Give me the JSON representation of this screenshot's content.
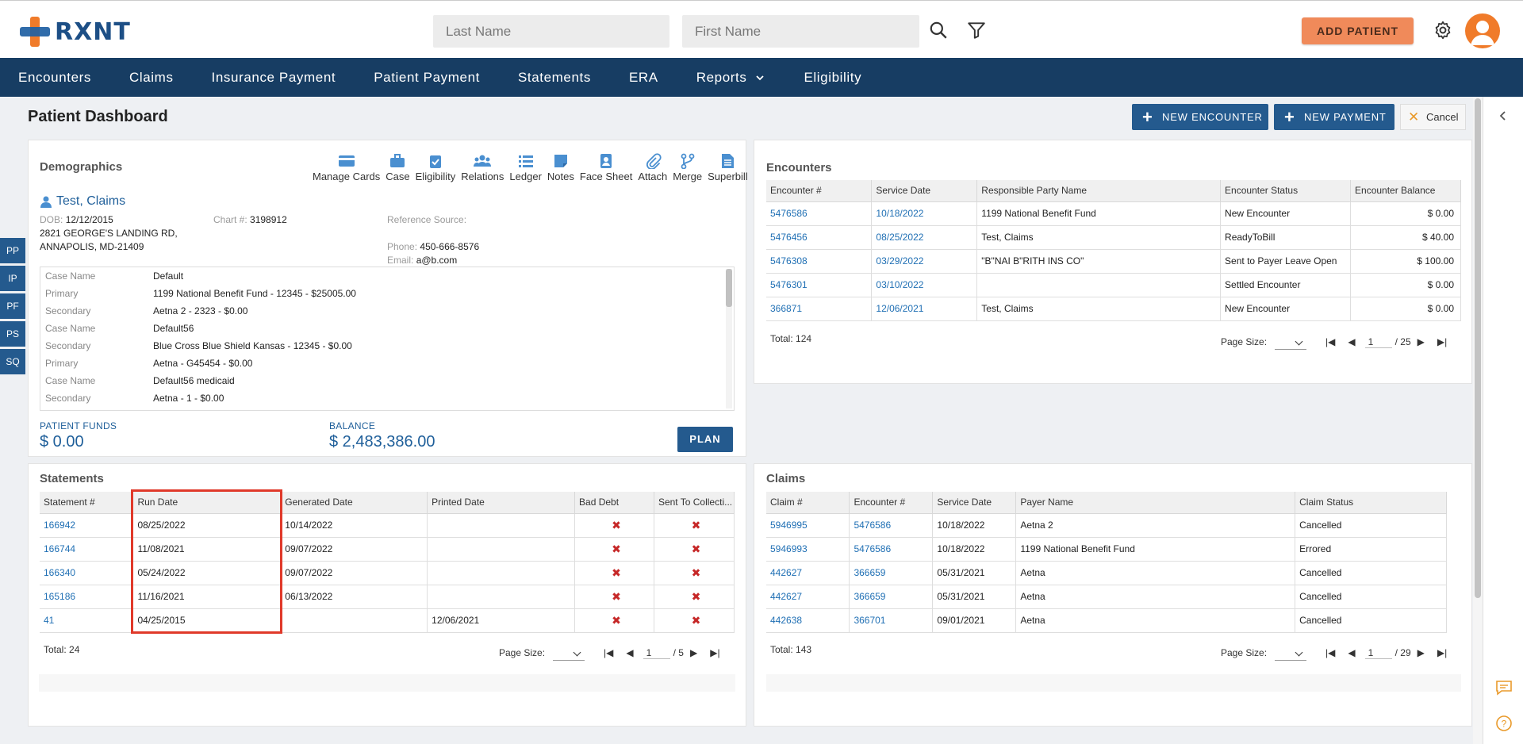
{
  "header": {
    "logo_text": "RXNT",
    "last_name_placeholder": "Last Name",
    "first_name_placeholder": "First Name",
    "add_patient_label": "ADD PATIENT"
  },
  "nav": [
    "Encounters",
    "Claims",
    "Insurance Payment",
    "Patient Payment",
    "Statements",
    "ERA",
    "Reports",
    "Eligibility"
  ],
  "page": {
    "title": "Patient Dashboard",
    "new_encounter_label": "NEW ENCOUNTER",
    "new_payment_label": "NEW PAYMENT",
    "cancel_label": "Cancel"
  },
  "left_tabs": [
    "PP",
    "IP",
    "PF",
    "PS",
    "SQ"
  ],
  "demographics": {
    "title": "Demographics",
    "tools": [
      "Manage Cards",
      "Case",
      "Eligibility",
      "Relations",
      "Ledger",
      "Notes",
      "Face Sheet",
      "Attach",
      "Merge",
      "Superbill"
    ],
    "patient_name": "Test, Claims",
    "dob_label": "DOB:",
    "dob": "12/12/2015",
    "chart_label": "Chart #:",
    "chart": "3198912",
    "address1": "2821 GEORGE'S LANDING RD,",
    "address2": "ANNAPOLIS, MD-21409",
    "reference_label": "Reference Source:",
    "phone_label": "Phone:",
    "phone": "450-666-8576",
    "email_label": "Email:",
    "email": "a@b.com",
    "cases": [
      {
        "k": "Case Name",
        "v": "Default"
      },
      {
        "k": "Primary",
        "v": "1199 National Benefit Fund - 12345 - $25005.00"
      },
      {
        "k": "Secondary",
        "v": "Aetna 2 - 2323 - $0.00"
      },
      {
        "k": "Case Name",
        "v": "Default56"
      },
      {
        "k": "Secondary",
        "v": "Blue Cross Blue Shield Kansas - 12345 - $0.00"
      },
      {
        "k": "Primary",
        "v": "Aetna - G45454 - $0.00"
      },
      {
        "k": "Case Name",
        "v": "Default56 medicaid"
      },
      {
        "k": "Secondary",
        "v": "Aetna - 1 - $0.00"
      }
    ],
    "patient_funds_label": "PATIENT FUNDS",
    "patient_funds": "$ 0.00",
    "balance_label": "BALANCE",
    "balance": "$ 2,483,386.00",
    "plan_label": "PLAN"
  },
  "encounters": {
    "title": "Encounters",
    "columns": [
      "Encounter #",
      "Service Date",
      "Responsible Party Name",
      "Encounter Status",
      "Encounter Balance"
    ],
    "rows": [
      [
        "5476586",
        "10/18/2022",
        "1199 National Benefit Fund",
        "New Encounter",
        "$ 0.00"
      ],
      [
        "5476456",
        "08/25/2022",
        "Test, Claims",
        "ReadyToBill",
        "$ 40.00"
      ],
      [
        "5476308",
        "03/29/2022",
        "\"B\"NAI B\"RITH INS CO\"",
        "Sent to Payer Leave Open",
        "$ 100.00"
      ],
      [
        "5476301",
        "03/10/2022",
        "",
        "Settled Encounter",
        "$ 0.00"
      ],
      [
        "366871",
        "12/06/2021",
        "Test, Claims",
        "New Encounter",
        "$ 0.00"
      ]
    ],
    "total": "Total: 124",
    "page_size_label": "Page Size:",
    "page": "1",
    "page_of": "/ 25"
  },
  "statements": {
    "title": "Statements",
    "columns": [
      "Statement #",
      "Run Date",
      "Generated Date",
      "Printed Date",
      "Bad Debt",
      "Sent To Collecti..."
    ],
    "rows": [
      [
        "166942",
        "08/25/2022",
        "10/14/2022",
        ""
      ],
      [
        "166744",
        "11/08/2021",
        "09/07/2022",
        ""
      ],
      [
        "166340",
        "05/24/2022",
        "09/07/2022",
        ""
      ],
      [
        "165186",
        "11/16/2021",
        "06/13/2022",
        ""
      ],
      [
        "41",
        "04/25/2015",
        "",
        "12/06/2021"
      ]
    ],
    "total": "Total: 24",
    "page_size_label": "Page Size:",
    "page": "1",
    "page_of": "/ 5"
  },
  "claims": {
    "title": "Claims",
    "columns": [
      "Claim #",
      "Encounter #",
      "Service Date",
      "Payer Name",
      "Claim Status"
    ],
    "rows": [
      [
        "5946995",
        "5476586",
        "10/18/2022",
        "Aetna 2",
        "Cancelled"
      ],
      [
        "5946993",
        "5476586",
        "10/18/2022",
        "1199 National Benefit Fund",
        "Errored"
      ],
      [
        "442627",
        "366659",
        "05/31/2021",
        "Aetna",
        "Cancelled"
      ],
      [
        "442627",
        "366659",
        "05/31/2021",
        "Aetna",
        "Cancelled"
      ],
      [
        "442638",
        "366701",
        "09/01/2021",
        "Aetna",
        "Cancelled"
      ]
    ],
    "total": "Total: 143",
    "page_size_label": "Page Size:",
    "page": "1",
    "page_of": "/ 29"
  },
  "colors": {
    "nav_bg": "#173d63",
    "button_blue": "#245a8e",
    "accent_orange": "#f08a5a",
    "link_blue": "#1f6fb4",
    "highlight_red": "#e0392a"
  }
}
